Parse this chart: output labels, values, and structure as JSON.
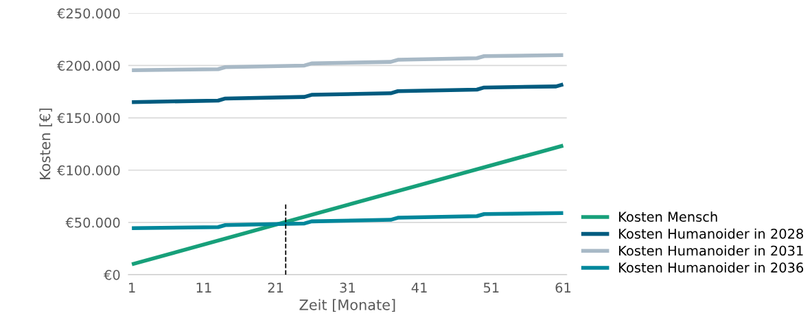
{
  "chart_data": {
    "type": "line",
    "xlabel": "Zeit [Monate]",
    "ylabel": "Kosten [€]",
    "xlim": [
      0.5,
      61.5
    ],
    "xticks": [
      1,
      11,
      21,
      31,
      41,
      51,
      61
    ],
    "ylim": [
      0,
      250000
    ],
    "yticks": [
      {
        "value": 0,
        "label": "€0"
      },
      {
        "value": 50000,
        "label": "€50.000"
      },
      {
        "value": 100000,
        "label": "€100.000"
      },
      {
        "value": 150000,
        "label": "€150.000"
      },
      {
        "value": 200000,
        "label": "€200.000"
      },
      {
        "value": 250000,
        "label": "€250.000"
      }
    ],
    "grid": "y",
    "legend": "right",
    "line_style": "solid",
    "marker": "none",
    "ref_lines": [
      {
        "axis": "x",
        "value": 22.4,
        "color": "#000000",
        "line_style": "dashed"
      }
    ],
    "series": [
      {
        "name": "Kosten Mensch",
        "color": "#17a07a",
        "x": [
          1,
          61
        ],
        "values": [
          10000,
          123500
        ]
      },
      {
        "name": "Kosten Humanoider in 2028",
        "color": "#005b7f",
        "x": [
          1,
          13,
          14,
          25,
          26,
          37,
          38,
          49,
          50,
          60,
          61
        ],
        "values": [
          165000,
          166500,
          168500,
          170000,
          172000,
          173500,
          175500,
          177000,
          179000,
          180000,
          182000
        ]
      },
      {
        "name": "Kosten Humanoider in 2031",
        "color": "#a8b9c6",
        "x": [
          1,
          13,
          14,
          25,
          26,
          37,
          38,
          49,
          50,
          61
        ],
        "values": [
          195500,
          196500,
          198500,
          200000,
          202000,
          203500,
          205500,
          207000,
          209000,
          210000
        ]
      },
      {
        "name": "Kosten Humanoider in 2036",
        "color": "#00879b",
        "x": [
          1,
          13,
          14,
          25,
          26,
          37,
          38,
          49,
          50,
          61
        ],
        "values": [
          44500,
          45500,
          47500,
          49000,
          51000,
          52500,
          54500,
          56000,
          58000,
          59000
        ]
      }
    ]
  }
}
